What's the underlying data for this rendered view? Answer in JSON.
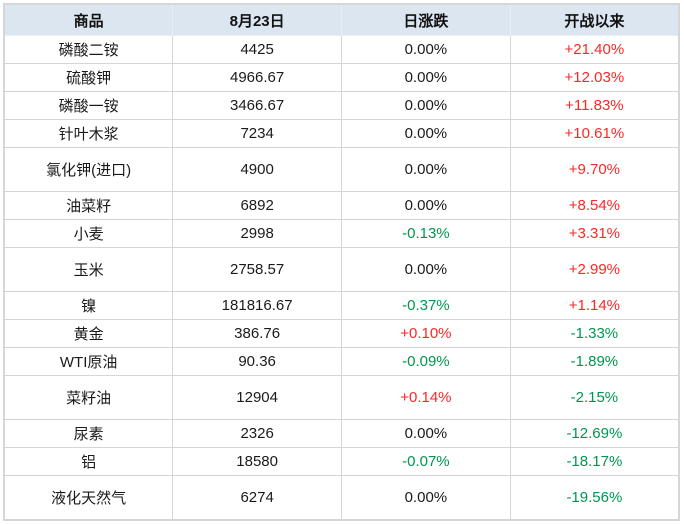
{
  "colors": {
    "header_bg": "#dce6f1",
    "up": "#fe2626",
    "down": "#00964f",
    "text": "#1a1a1a",
    "grid_border": "#d6d6d6"
  },
  "chart_data": {
    "type": "table",
    "title": "",
    "columns": [
      "商品",
      "8月23日",
      "日涨跌",
      "开战以来"
    ],
    "rows": [
      {
        "name": "磷酸二铵",
        "price": "4425",
        "daily": "0.00%",
        "daily_dir": "flat",
        "since": "+21.40%",
        "since_dir": "up",
        "tall": false
      },
      {
        "name": "硫酸钾",
        "price": "4966.67",
        "daily": "0.00%",
        "daily_dir": "flat",
        "since": "+12.03%",
        "since_dir": "up",
        "tall": false
      },
      {
        "name": "磷酸一铵",
        "price": "3466.67",
        "daily": "0.00%",
        "daily_dir": "flat",
        "since": "+11.83%",
        "since_dir": "up",
        "tall": false
      },
      {
        "name": "针叶木浆",
        "price": "7234",
        "daily": "0.00%",
        "daily_dir": "flat",
        "since": "+10.61%",
        "since_dir": "up",
        "tall": false
      },
      {
        "name": "氯化钾(进口)",
        "price": "4900",
        "daily": "0.00%",
        "daily_dir": "flat",
        "since": "+9.70%",
        "since_dir": "up",
        "tall": true
      },
      {
        "name": "油菜籽",
        "price": "6892",
        "daily": "0.00%",
        "daily_dir": "flat",
        "since": "+8.54%",
        "since_dir": "up",
        "tall": false
      },
      {
        "name": "小麦",
        "price": "2998",
        "daily": "-0.13%",
        "daily_dir": "down",
        "since": "+3.31%",
        "since_dir": "up",
        "tall": false
      },
      {
        "name": "玉米",
        "price": "2758.57",
        "daily": "0.00%",
        "daily_dir": "flat",
        "since": "+2.99%",
        "since_dir": "up",
        "tall": true
      },
      {
        "name": "镍",
        "price": "181816.67",
        "daily": "-0.37%",
        "daily_dir": "down",
        "since": "+1.14%",
        "since_dir": "up",
        "tall": false
      },
      {
        "name": "黄金",
        "price": "386.76",
        "daily": "+0.10%",
        "daily_dir": "up",
        "since": "-1.33%",
        "since_dir": "down",
        "tall": false
      },
      {
        "name": "WTI原油",
        "price": "90.36",
        "daily": "-0.09%",
        "daily_dir": "down",
        "since": "-1.89%",
        "since_dir": "down",
        "tall": false
      },
      {
        "name": "菜籽油",
        "price": "12904",
        "daily": "+0.14%",
        "daily_dir": "up",
        "since": "-2.15%",
        "since_dir": "down",
        "tall": true
      },
      {
        "name": "尿素",
        "price": "2326",
        "daily": "0.00%",
        "daily_dir": "flat",
        "since": "-12.69%",
        "since_dir": "down",
        "tall": false
      },
      {
        "name": "铝",
        "price": "18580",
        "daily": "-0.07%",
        "daily_dir": "down",
        "since": "-18.17%",
        "since_dir": "down",
        "tall": false
      },
      {
        "name": "液化天然气",
        "price": "6274",
        "daily": "0.00%",
        "daily_dir": "flat",
        "since": "-19.56%",
        "since_dir": "down",
        "tall": true
      }
    ]
  }
}
